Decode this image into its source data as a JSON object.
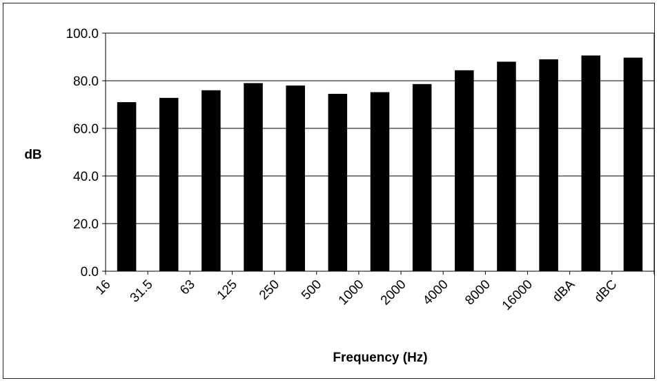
{
  "chart_data": {
    "type": "bar",
    "title": "",
    "xlabel": "Frequency (Hz)",
    "ylabel": "dB",
    "categories": [
      "16",
      "31.5",
      "63",
      "125",
      "250",
      "500",
      "1000",
      "2000",
      "4000",
      "8000",
      "16000",
      "dBA",
      "dBC"
    ],
    "values": [
      71.0,
      72.8,
      76.0,
      79.0,
      78.0,
      74.5,
      75.2,
      78.6,
      84.4,
      88.0,
      89.0,
      90.6,
      89.7
    ],
    "ylim": [
      0,
      100
    ],
    "yticks": [
      "0.0",
      "20.0",
      "40.0",
      "60.0",
      "80.0",
      "100.0"
    ],
    "ytick_values": [
      0,
      20,
      40,
      60,
      80,
      100
    ],
    "grid": true,
    "legend": "none",
    "bar_color": "#000000",
    "grid_color": "#000000"
  }
}
